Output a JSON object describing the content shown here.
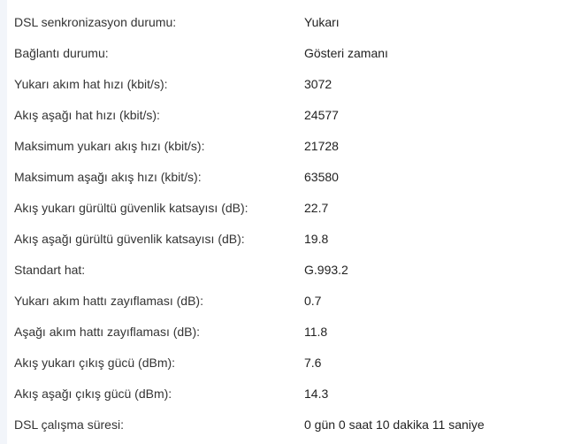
{
  "rows": [
    {
      "label": "DSL senkronizasyon durumu:",
      "value": "Yukarı"
    },
    {
      "label": "Bağlantı durumu:",
      "value": "Gösteri zamanı"
    },
    {
      "label": "Yukarı akım hat hızı (kbit/s):",
      "value": "3072"
    },
    {
      "label": "Akış aşağı hat hızı (kbit/s):",
      "value": "24577"
    },
    {
      "label": "Maksimum yukarı akış hızı (kbit/s):",
      "value": "21728"
    },
    {
      "label": "Maksimum aşağı akış hızı (kbit/s):",
      "value": "63580"
    },
    {
      "label": "Akış yukarı gürültü güvenlik katsayısı (dB):",
      "value": "22.7"
    },
    {
      "label": "Akış aşağı gürültü güvenlik katsayısı (dB):",
      "value": "19.8"
    },
    {
      "label": "Standart hat:",
      "value": "G.993.2"
    },
    {
      "label": "Yukarı akım hattı zayıflaması (dB):",
      "value": "0.7"
    },
    {
      "label": "Aşağı akım hattı zayıflaması (dB):",
      "value": "11.8"
    },
    {
      "label": "Akış yukarı çıkış gücü (dBm):",
      "value": "7.6"
    },
    {
      "label": "Akış aşağı çıkış gücü (dBm):",
      "value": "14.3"
    },
    {
      "label": "DSL çalışma süresi:",
      "value": "0 gün 0 saat 10 dakika 11 saniye"
    }
  ]
}
